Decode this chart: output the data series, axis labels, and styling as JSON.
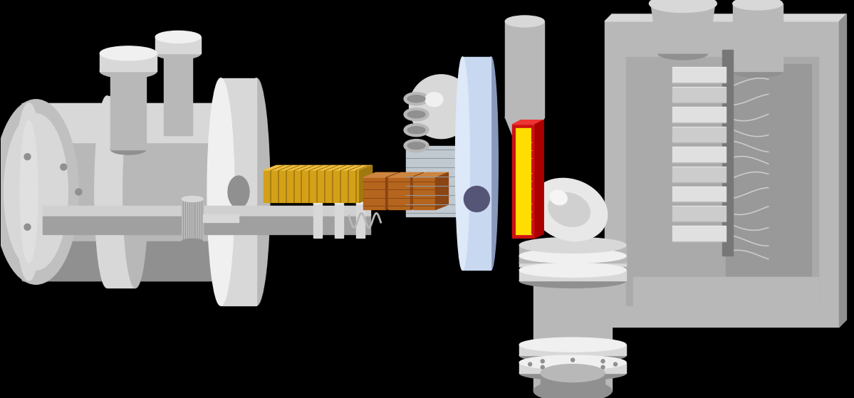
{
  "background_color": "#000000",
  "figsize": [
    11.99,
    5.59
  ],
  "dpi": 100,
  "colors": {
    "c_light": "#d8d8d8",
    "c_mid": "#b8b8b8",
    "c_dark": "#909090",
    "c_vdark": "#606060",
    "c_white": "#f0f0f0",
    "c_hex": "#d4a017",
    "c_hex_d": "#a07810",
    "c_hex_h": "#f0c040",
    "c_cop": "#b5651d",
    "c_cop_d": "#8b4513",
    "c_cop_h": "#cd853f",
    "c_red": "#cc1111",
    "c_yellow": "#ffdd00",
    "c_blue_panel": "#c8d8f0",
    "c_blue_dark": "#8899bb"
  }
}
